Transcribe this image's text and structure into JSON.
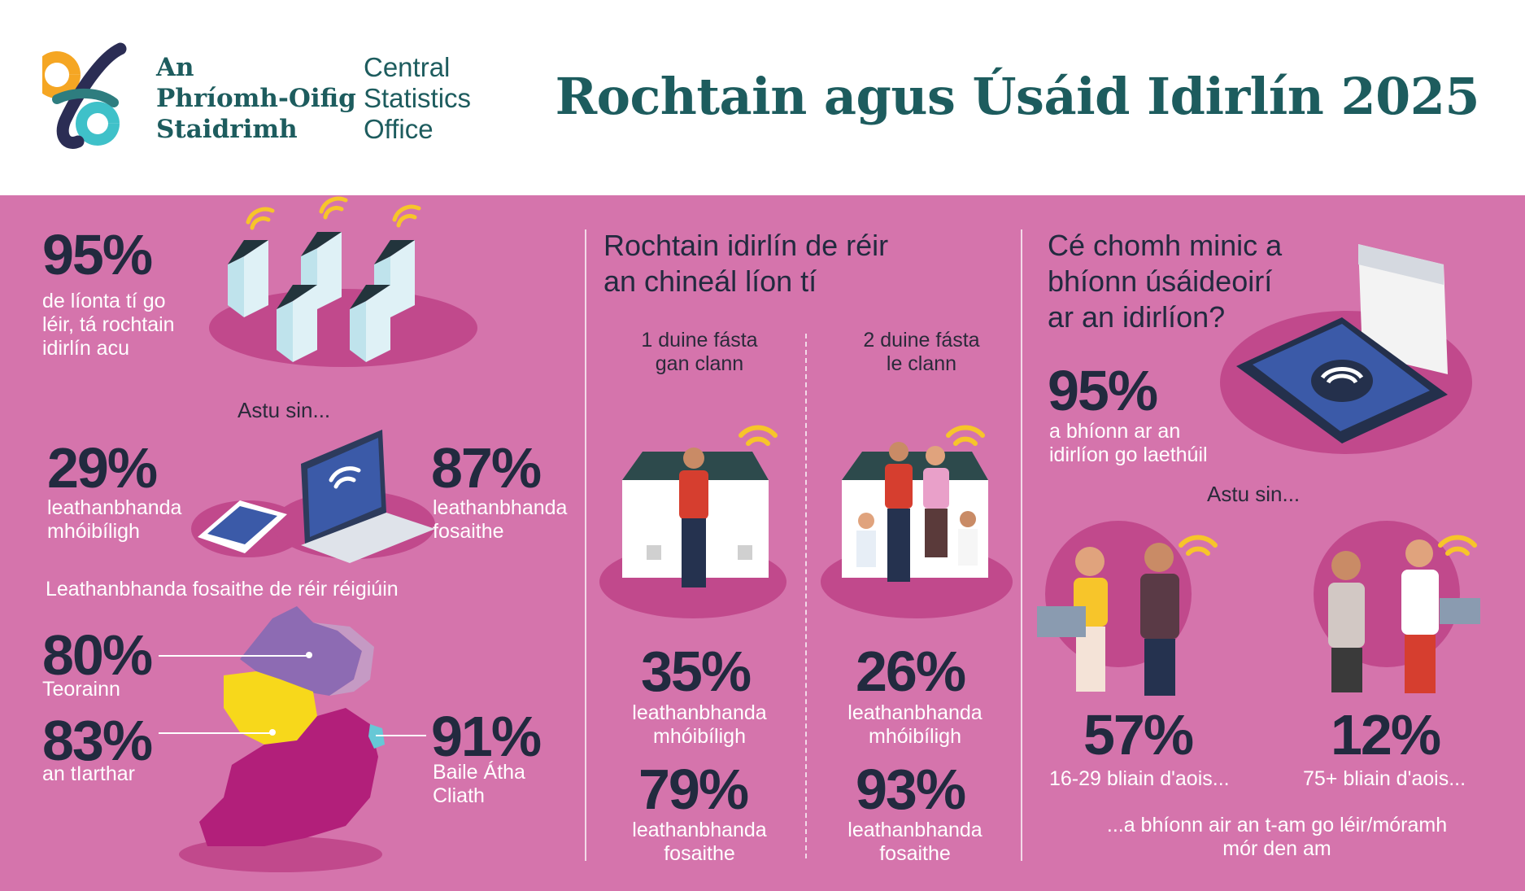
{
  "header": {
    "logo_ga": [
      "An",
      "Phríomh-Oifig",
      "Staidrimh"
    ],
    "logo_en": [
      "Central",
      "Statistics",
      "Office"
    ],
    "title": "Rochtain agus Úsáid Idirlín 2025"
  },
  "colors": {
    "teal_title": "#1d5c5e",
    "background_panel": "#d574ac",
    "number_text": "#222a3f",
    "map_border": "#8d6bb3",
    "map_west": "#f7d81b",
    "map_dublin": "#66c8d6",
    "map_rest": "#b21f7a",
    "wifi": "#f7c52a"
  },
  "left": {
    "households_pct": "95%",
    "households_text": [
      "de líonta tí go",
      "léir, tá rochtain",
      "idirlín acu"
    ],
    "of_which": "Astu sin...",
    "mobile_pct": "29%",
    "mobile_text": [
      "leathanbhanda",
      "mhóibíligh"
    ],
    "fixed_pct": "87%",
    "fixed_text": [
      "leathanbhanda",
      "fosaithe"
    ],
    "region_title": "Leathanbhanda fosaithe de réir réigiúin",
    "regions": [
      {
        "pct": "80%",
        "name": [
          "Teorainn"
        ]
      },
      {
        "pct": "83%",
        "name": [
          "an tIarthar"
        ]
      },
      {
        "pct": "91%",
        "name": [
          "Baile Átha",
          "Cliath"
        ]
      }
    ]
  },
  "middle": {
    "heading": [
      "Rochtain idirlín de réir",
      "an chineál líon tí"
    ],
    "groups": [
      {
        "label": [
          "1 duine fásta",
          "gan clann"
        ],
        "mobile_pct": "35%",
        "mobile_text": [
          "leathanbhanda",
          "mhóibíligh"
        ],
        "fixed_pct": "79%",
        "fixed_text": [
          "leathanbhanda",
          "fosaithe"
        ]
      },
      {
        "label": [
          "2 duine fásta",
          "le clann"
        ],
        "mobile_pct": "26%",
        "mobile_text": [
          "leathanbhanda",
          "mhóibíligh"
        ],
        "fixed_pct": "93%",
        "fixed_text": [
          "leathanbhanda",
          "fosaithe"
        ]
      }
    ]
  },
  "right": {
    "heading": [
      "Cé chomh minic a",
      "bhíonn úsáideoirí",
      "ar an idirlíon?"
    ],
    "daily_pct": "95%",
    "daily_text": [
      "a bhíonn ar an",
      "idirlíon go laethúil"
    ],
    "of_which": "Astu sin...",
    "young_pct": "57%",
    "young_text": "16-29 bliain d'aois...",
    "old_pct": "12%",
    "old_text": "75+ bliain d'aois...",
    "footer": [
      "...a bhíonn air an t-am go léir/móramh",
      "mór den am"
    ]
  }
}
